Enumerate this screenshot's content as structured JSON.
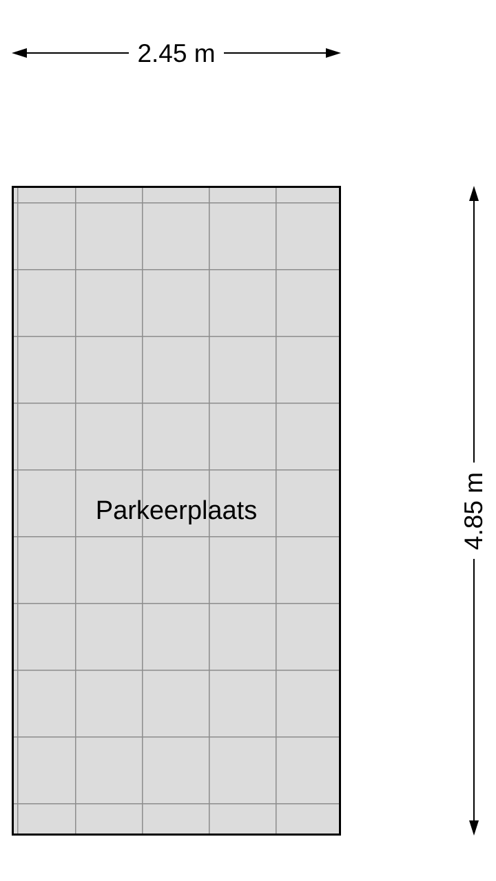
{
  "figure": {
    "type": "floorplan",
    "room": {
      "label": "Parkeerplaats"
    },
    "dimensions": {
      "width_label": "2.45 m",
      "height_label": "4.85 m"
    },
    "colors": {
      "background": "#ffffff",
      "room_fill": "#dcdcdc",
      "grid_line": "#8c8c8c",
      "outline": "#000000",
      "text": "#000000"
    }
  }
}
